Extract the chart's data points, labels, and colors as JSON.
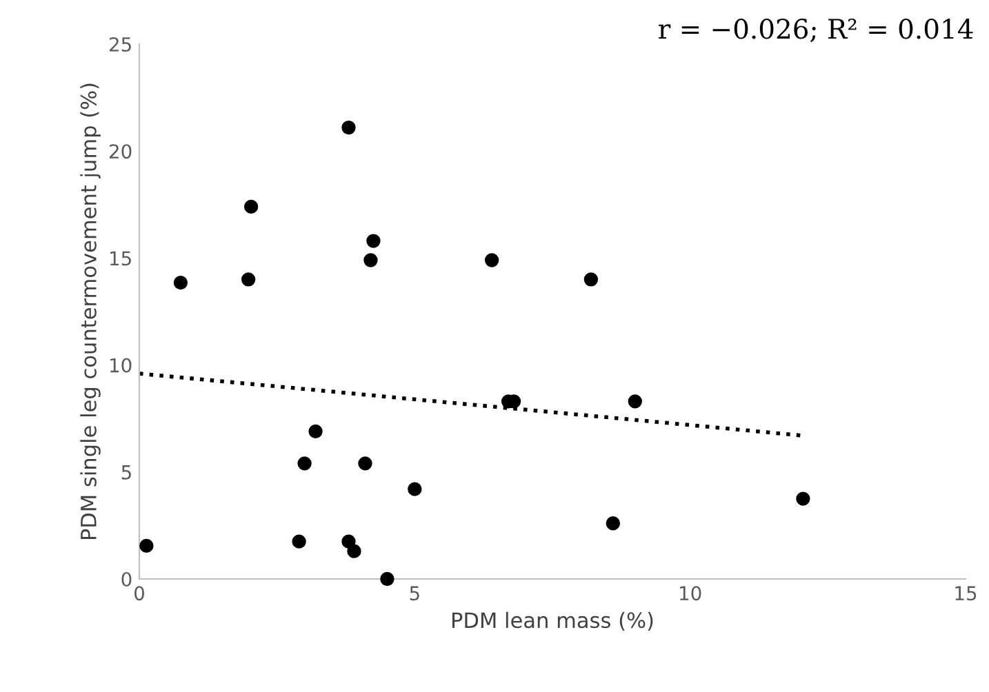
{
  "chart_data": {
    "type": "scatter",
    "xlabel": "PDM lean mass (%)",
    "ylabel": "PDM single leg countermovement jump (%)",
    "annotations": [
      "r = −0.026; R² = 0.014"
    ],
    "series": [
      {
        "color": "#000000",
        "marker": "circle",
        "x": [
          0.13,
          0.75,
          1.98,
          2.03,
          3.8,
          4.25,
          4.2,
          6.4,
          8.2,
          3.0,
          3.2,
          4.1,
          5.0,
          2.9,
          3.8,
          3.9,
          4.5,
          6.7,
          6.8,
          9.0,
          8.6,
          12.05
        ],
        "values": [
          1.55,
          13.85,
          14.0,
          17.4,
          21.1,
          15.8,
          14.9,
          14.9,
          14.0,
          5.4,
          6.9,
          5.4,
          4.2,
          1.75,
          1.75,
          1.3,
          0,
          8.3,
          8.3,
          8.3,
          2.6,
          3.75
        ]
      },
      {
        "type": "line",
        "color": "#000000",
        "line_style": "dotted",
        "x": [
          0,
          12.05
        ],
        "values": [
          9.6,
          6.7
        ]
      }
    ],
    "xlim": [
      0,
      15
    ],
    "ylim": [
      0,
      25
    ],
    "xticks": [
      0,
      5,
      10,
      15
    ],
    "yticks": [
      0,
      5,
      10,
      15,
      20,
      25
    ],
    "grid": false,
    "legend": false
  }
}
